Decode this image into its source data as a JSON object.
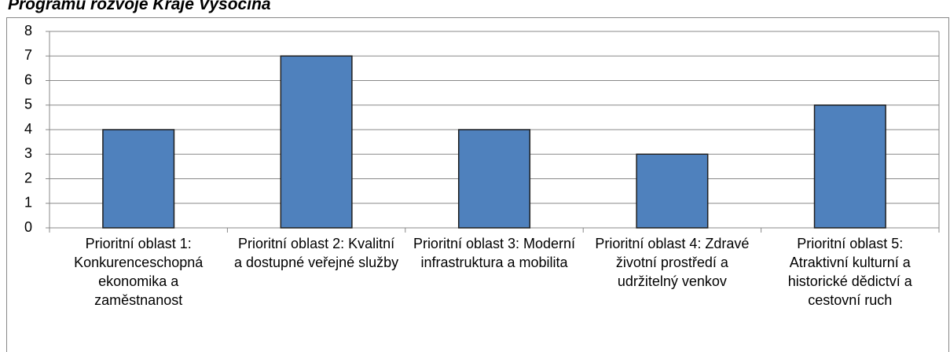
{
  "chart_data": {
    "type": "bar",
    "title": "Programu rozvoje Kraje Vysočina",
    "categories": [
      "Prioritní oblast 1: Konkurenceschopná ekonomika a zaměstnanost",
      "Prioritní oblast 2: Kvalitní a dostupné veřejné služby",
      "Prioritní oblast 3: Moderní infrastruktura a mobilita",
      "Prioritní oblast 4: Zdravé životní prostředí a udržitelný venkov",
      "Prioritní oblast 5: Atraktivní kulturní a historické dědictví a cestovní ruch"
    ],
    "values": [
      4,
      7,
      4,
      3,
      5
    ],
    "color": "#4f81bd",
    "ylim": [
      0,
      8
    ],
    "yticks": [
      0,
      1,
      2,
      3,
      4,
      5,
      6,
      7,
      8
    ],
    "grid": true
  }
}
